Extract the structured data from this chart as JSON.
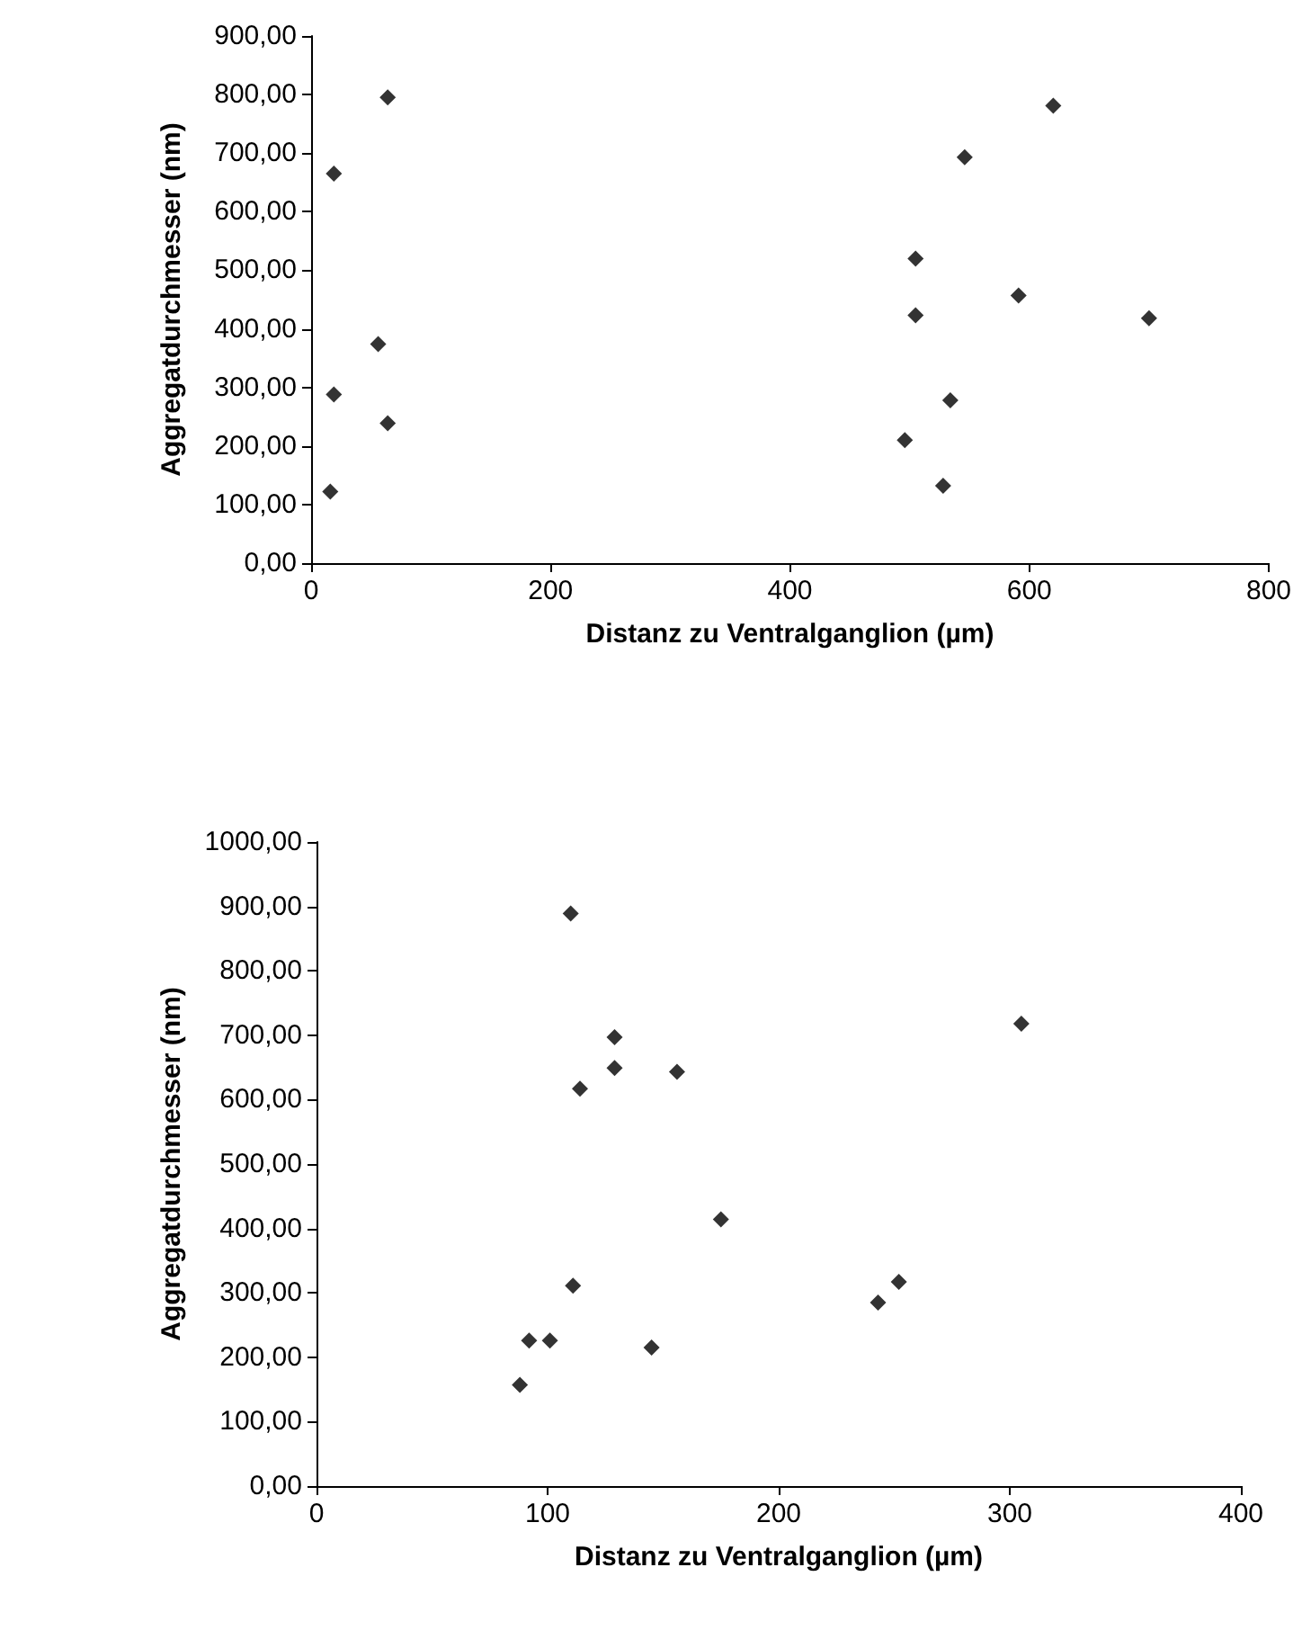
{
  "chart_data": [
    {
      "type": "scatter",
      "xlabel": "Distanz zu Ventralganglion (µm)",
      "ylabel": "Aggregatdurchmesser (nm)",
      "marker": "diamond",
      "grid": false,
      "x": [
        64,
        19,
        56,
        19,
        64,
        16,
        620,
        546,
        505,
        591,
        505,
        700,
        534,
        496,
        528
      ],
      "series": [
        {
          "color": "#000000",
          "values": [
            795,
            665,
            374,
            288,
            239,
            122,
            781,
            693,
            520,
            457,
            423,
            418,
            278,
            210,
            132
          ]
        }
      ],
      "xlim": [
        0,
        800
      ],
      "xticks": [
        0,
        200,
        400,
        600,
        800
      ],
      "ylim": [
        0,
        900
      ],
      "yticks": [
        {
          "value": 0,
          "label": "0,00"
        },
        {
          "value": 100,
          "label": "100,00"
        },
        {
          "value": 200,
          "label": "200,00"
        },
        {
          "value": 300,
          "label": "300,00"
        },
        {
          "value": 400,
          "label": "400,00"
        },
        {
          "value": 500,
          "label": "500,00"
        },
        {
          "value": 600,
          "label": "600,00"
        },
        {
          "value": 700,
          "label": "700,00"
        },
        {
          "value": 800,
          "label": "800,00"
        },
        {
          "value": 900,
          "label": "900,00"
        }
      ]
    },
    {
      "type": "scatter",
      "xlabel": "Distanz zu Ventralganglion (µm)",
      "ylabel": "Aggregatdurchmesser (nm)",
      "marker": "diamond",
      "grid": false,
      "x": [
        110,
        129,
        129,
        114,
        156,
        305,
        175,
        111,
        92,
        101,
        145,
        88,
        243,
        252
      ],
      "series": [
        {
          "color": "#000000",
          "values": [
            889,
            697,
            649,
            617,
            643,
            718,
            414,
            311,
            226,
            226,
            215,
            157,
            285,
            317
          ]
        }
      ],
      "xlim": [
        0,
        400
      ],
      "xticks": [
        0,
        100,
        200,
        300,
        400
      ],
      "ylim": [
        0,
        1000
      ],
      "yticks": [
        {
          "value": 0,
          "label": "0,00"
        },
        {
          "value": 100,
          "label": "100,00"
        },
        {
          "value": 200,
          "label": "200,00"
        },
        {
          "value": 300,
          "label": "300,00"
        },
        {
          "value": 400,
          "label": "400,00"
        },
        {
          "value": 500,
          "label": "500,00"
        },
        {
          "value": 600,
          "label": "600,00"
        },
        {
          "value": 700,
          "label": "700,00"
        },
        {
          "value": 800,
          "label": "800,00"
        },
        {
          "value": 900,
          "label": "900,00"
        },
        {
          "value": 1000,
          "label": "1000,00"
        }
      ]
    }
  ]
}
